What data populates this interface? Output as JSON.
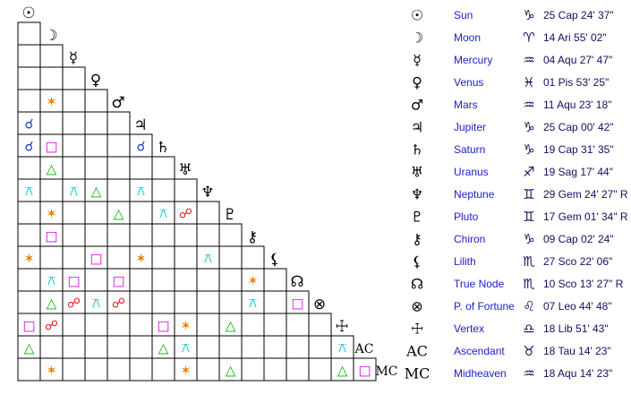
{
  "planets": [
    {
      "glyph": "☉",
      "name": "Sun",
      "sign": "♑",
      "position": "25 Cap 24' 37\""
    },
    {
      "glyph": "☽",
      "name": "Moon",
      "sign": "♈",
      "position": "14 Ari 55' 02\""
    },
    {
      "glyph": "☿",
      "name": "Mercury",
      "sign": "♒",
      "position": "04 Aqu 27' 47\""
    },
    {
      "glyph": "♀",
      "name": "Venus",
      "sign": "♓",
      "position": "01 Pis 53' 25\""
    },
    {
      "glyph": "♂",
      "name": "Mars",
      "sign": "♒",
      "position": "11 Aqu 23' 18\""
    },
    {
      "glyph": "♃",
      "name": "Jupiter",
      "sign": "♑",
      "position": "25 Cap 00' 42\""
    },
    {
      "glyph": "♄",
      "name": "Saturn",
      "sign": "♑",
      "position": "19 Cap 31' 35\""
    },
    {
      "glyph": "♅",
      "name": "Uranus",
      "sign": "♐",
      "position": "19 Sag 17' 44\""
    },
    {
      "glyph": "♆",
      "name": "Neptune",
      "sign": "♊",
      "position": "29 Gem 24' 27\" R"
    },
    {
      "glyph": "♇",
      "name": "Pluto",
      "sign": "♊",
      "position": "17 Gem 01' 34\" R"
    },
    {
      "glyph": "⚷",
      "name": "Chiron",
      "sign": "♑",
      "position": "09 Cap 02' 24\""
    },
    {
      "glyph": "⚸",
      "name": "Lilith",
      "sign": "♏",
      "position": "27 Sco 22' 06\""
    },
    {
      "glyph": "☊",
      "name": "True Node",
      "sign": "♏",
      "position": "10 Sco 13' 27\" R"
    },
    {
      "glyph": "⊗",
      "name": "P. of Fortune",
      "sign": "♌",
      "position": "07 Leo 44' 48\""
    },
    {
      "glyph": "☩",
      "name": "Vertex",
      "sign": "♎",
      "position": "18 Lib 51' 43\""
    },
    {
      "glyph": "AC",
      "name": "Ascendant",
      "sign": "♉",
      "position": "18 Tau 14' 23\""
    },
    {
      "glyph": "MC",
      "name": "Midheaven",
      "sign": "♒",
      "position": "18 Aqu 14' 23\""
    }
  ],
  "grid": {
    "rows": [
      [
        null
      ],
      [
        null,
        null
      ],
      [
        null,
        null,
        null
      ],
      [
        null,
        "✶",
        null,
        null
      ],
      [
        "☌",
        null,
        null,
        null,
        null
      ],
      [
        "☌",
        "□",
        null,
        null,
        null,
        "☌"
      ],
      [
        null,
        "△",
        null,
        null,
        null,
        null,
        null
      ],
      [
        "⚻",
        null,
        "⚻",
        "△",
        null,
        "⚻",
        null,
        null
      ],
      [
        null,
        "✶",
        null,
        null,
        "△",
        null,
        "⚻",
        "☍",
        null
      ],
      [
        null,
        "□",
        null,
        null,
        null,
        null,
        null,
        null,
        null,
        null
      ],
      [
        "✶",
        null,
        null,
        "□",
        null,
        "✶",
        null,
        null,
        "⚻",
        null,
        null
      ],
      [
        null,
        "⚻",
        "□",
        null,
        "□",
        null,
        null,
        null,
        null,
        null,
        "✶",
        null
      ],
      [
        null,
        "△",
        "☍",
        "⚻",
        "☍",
        null,
        null,
        null,
        null,
        null,
        "⚻",
        null,
        "□"
      ],
      [
        "□",
        "☍",
        null,
        null,
        null,
        null,
        "□",
        "✶",
        null,
        "△",
        null,
        null,
        null,
        null
      ],
      [
        "△",
        null,
        null,
        null,
        null,
        null,
        "△",
        "⚻",
        null,
        null,
        null,
        null,
        null,
        null,
        "⚻"
      ],
      [
        null,
        "✶",
        null,
        null,
        null,
        null,
        null,
        "✶",
        null,
        "△",
        null,
        null,
        null,
        null,
        "△",
        "□"
      ]
    ]
  },
  "aspect_colors": {
    "☌": "#1c3cc8",
    "✶": "#f08000",
    "□": "#e000e0",
    "△": "#00b000",
    "☍": "#e02020",
    "⚻": "#00c8d0"
  }
}
